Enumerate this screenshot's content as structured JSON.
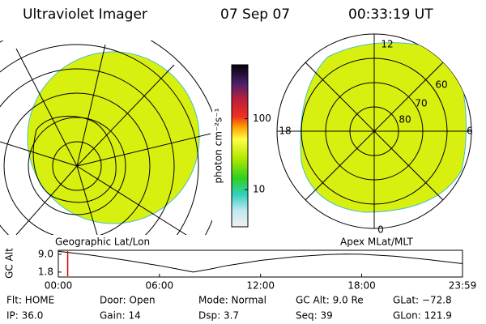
{
  "header": {
    "instrument": "Ultraviolet Imager",
    "date": "07 Sep 07",
    "time": "00:33:19 UT"
  },
  "left_panel": {
    "caption": "Geographic Lat/Lon"
  },
  "right_panel": {
    "caption": "Apex MLat/MLT",
    "mlt_labels": [
      "12",
      "18",
      "6",
      "0"
    ],
    "mlat_labels": [
      "60",
      "70",
      "80"
    ]
  },
  "colorbar": {
    "label": "photon cm⁻²s⁻¹",
    "scale": "log",
    "range": [
      3,
      575
    ],
    "ticks": [
      10,
      100
    ]
  },
  "altitude": {
    "ylabel": "GC Alt",
    "ylim": [
      -0.2,
      10.6
    ],
    "yticks": [
      {
        "value": 9,
        "label": "9.0"
      },
      {
        "value": 1.8,
        "label": "1.8"
      }
    ],
    "xlim": [
      0,
      23.983
    ],
    "xticks": [
      {
        "value": 0,
        "label": "00:00"
      },
      {
        "value": 6,
        "label": "06:00"
      },
      {
        "value": 12,
        "label": "12:00"
      },
      {
        "value": 18,
        "label": "18:00"
      },
      {
        "value": 23.983,
        "label": "23:59"
      }
    ],
    "x": [
      0,
      2,
      4,
      6,
      7,
      8,
      9,
      10,
      12,
      14,
      16,
      17,
      18,
      20,
      22,
      23.983
    ],
    "values": [
      10.2,
      8.6,
      6.6,
      4.4,
      3.1,
      1.8,
      3.0,
      4.4,
      6.5,
      8.0,
      8.9,
      9.1,
      9.0,
      8.2,
      6.8,
      5.2
    ],
    "marker": 0.555,
    "color": "#000000",
    "marker_color": "#e00000"
  },
  "footer": [
    [
      "Flt: HOME",
      "Door: Open",
      "Mode: Normal",
      "GC Alt: 9.0 Re",
      "GLat: −72.8"
    ],
    [
      "IP: 36.0",
      "Gain: 14",
      "Dsp:   3.7",
      "Seq: 39",
      "GLon: 121.9"
    ]
  ]
}
